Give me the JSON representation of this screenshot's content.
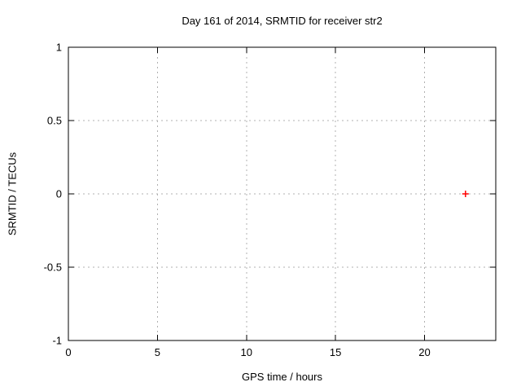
{
  "chart_data": {
    "type": "scatter",
    "title": "Day 161 of 2014, SRMTID for receiver str2",
    "xlabel": "GPS time / hours",
    "ylabel": "SRMTID / TECUs",
    "xlim": [
      0,
      24
    ],
    "ylim": [
      -1,
      1
    ],
    "xticks": {
      "values": [
        0,
        5,
        10,
        15,
        20
      ],
      "labels": [
        "0",
        "5",
        "10",
        "15",
        "20"
      ]
    },
    "yticks": {
      "values": [
        1,
        0.5,
        0,
        -0.5,
        -1
      ],
      "labels": [
        "1",
        "0.5",
        "0",
        "-0.5",
        "-1"
      ]
    },
    "grid": true,
    "grid_style": "dotted",
    "legend": "none",
    "series": [
      {
        "marker": "plus",
        "color": "#ff0000",
        "points": [
          {
            "x": 22.3,
            "y": 0
          }
        ]
      }
    ],
    "colors": {
      "background": "#ffffff",
      "border": "#000000",
      "grid": "#b0b0b0",
      "text": "#000000"
    }
  }
}
